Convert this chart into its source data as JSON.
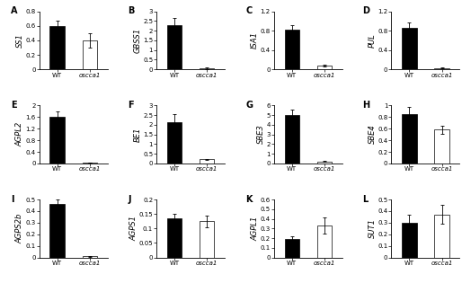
{
  "panels": [
    {
      "label": "A",
      "gene": "SS1",
      "wt_val": 0.6,
      "wt_err": 0.07,
      "mut_val": 0.4,
      "mut_err": 0.1,
      "ylim": [
        0,
        0.8
      ],
      "yticks": [
        0,
        0.2,
        0.4,
        0.6,
        0.8
      ]
    },
    {
      "label": "B",
      "gene": "GBSS1",
      "wt_val": 2.3,
      "wt_err": 0.35,
      "mut_val": 0.06,
      "mut_err": 0.04,
      "ylim": [
        0,
        3.0
      ],
      "yticks": [
        0,
        0.5,
        1.0,
        1.5,
        2.0,
        2.5,
        3.0
      ]
    },
    {
      "label": "C",
      "gene": "ISA1",
      "wt_val": 0.82,
      "wt_err": 0.1,
      "mut_val": 0.08,
      "mut_err": 0.02,
      "ylim": [
        0,
        1.2
      ],
      "yticks": [
        0,
        0.4,
        0.8,
        1.2
      ]
    },
    {
      "label": "D",
      "gene": "PUL",
      "wt_val": 0.85,
      "wt_err": 0.12,
      "mut_val": 0.03,
      "mut_err": 0.015,
      "ylim": [
        0,
        1.2
      ],
      "yticks": [
        0,
        0.4,
        0.8,
        1.2
      ]
    },
    {
      "label": "E",
      "gene": "AGPL2",
      "wt_val": 1.6,
      "wt_err": 0.2,
      "mut_val": 0.03,
      "mut_err": 0.01,
      "ylim": [
        0,
        2.0
      ],
      "yticks": [
        0,
        0.4,
        0.8,
        1.2,
        1.6,
        2.0
      ]
    },
    {
      "label": "F",
      "gene": "BE1",
      "wt_val": 2.15,
      "wt_err": 0.4,
      "mut_val": 0.22,
      "mut_err": 0.03,
      "ylim": [
        0,
        3.0
      ],
      "yticks": [
        0,
        0.5,
        1.0,
        1.5,
        2.0,
        2.5,
        3.0
      ]
    },
    {
      "label": "G",
      "gene": "SBE3",
      "wt_val": 5.0,
      "wt_err": 0.55,
      "mut_val": 0.2,
      "mut_err": 0.05,
      "ylim": [
        0,
        6.0
      ],
      "yticks": [
        0,
        1.0,
        2.0,
        3.0,
        4.0,
        5.0,
        6.0
      ]
    },
    {
      "label": "H",
      "gene": "SBE4",
      "wt_val": 0.85,
      "wt_err": 0.12,
      "mut_val": 0.58,
      "mut_err": 0.07,
      "ylim": [
        0,
        1.0
      ],
      "yticks": [
        0,
        0.2,
        0.4,
        0.6,
        0.8,
        1.0
      ]
    },
    {
      "label": "I",
      "gene": "AGPS2b",
      "wt_val": 0.46,
      "wt_err": 0.04,
      "mut_val": 0.01,
      "mut_err": 0.005,
      "ylim": [
        0,
        0.5
      ],
      "yticks": [
        0,
        0.1,
        0.2,
        0.3,
        0.4,
        0.5
      ]
    },
    {
      "label": "J",
      "gene": "AGPS1",
      "wt_val": 0.135,
      "wt_err": 0.015,
      "mut_val": 0.125,
      "mut_err": 0.02,
      "ylim": [
        0,
        0.2
      ],
      "yticks": [
        0,
        0.05,
        0.1,
        0.15,
        0.2
      ]
    },
    {
      "label": "K",
      "gene": "AGPL1",
      "wt_val": 0.19,
      "wt_err": 0.03,
      "mut_val": 0.33,
      "mut_err": 0.08,
      "ylim": [
        0,
        0.6
      ],
      "yticks": [
        0,
        0.1,
        0.2,
        0.3,
        0.4,
        0.5,
        0.6
      ]
    },
    {
      "label": "L",
      "gene": "SUT1",
      "wt_val": 0.3,
      "wt_err": 0.07,
      "mut_val": 0.37,
      "mut_err": 0.08,
      "ylim": [
        0,
        0.5
      ],
      "yticks": [
        0,
        0.1,
        0.2,
        0.3,
        0.4,
        0.5
      ]
    }
  ],
  "wt_color": "#000000",
  "mut_color": "#ffffff",
  "bar_width": 0.45,
  "xtick_labels": [
    "WT",
    "oscca1"
  ],
  "tick_fontsize": 5.0,
  "gene_fontsize": 6.0,
  "panel_label_fontsize": 7.0
}
